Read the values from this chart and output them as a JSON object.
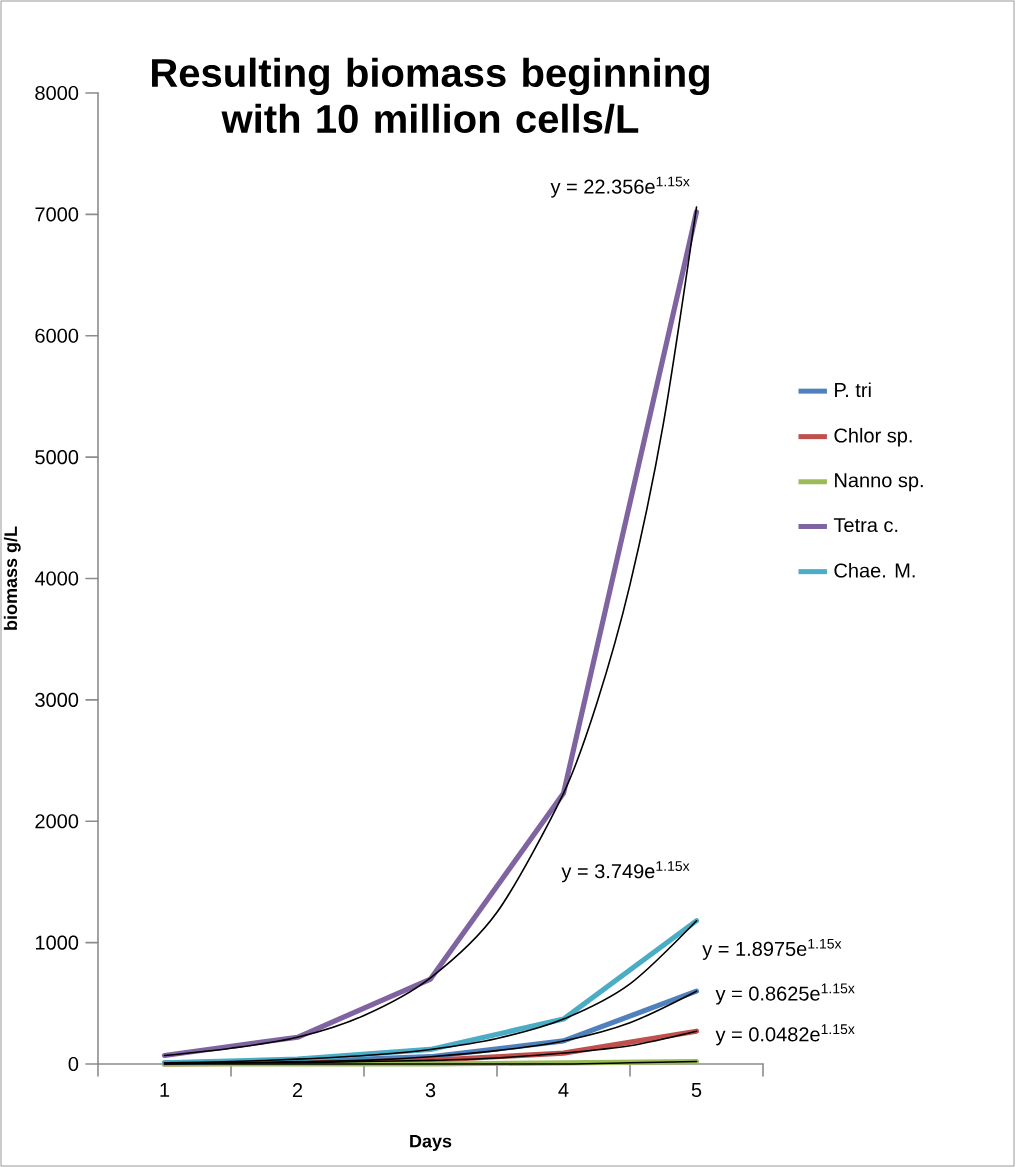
{
  "chart_data": {
    "type": "line",
    "title": "Resulting biomass beginning with 10 million cells/L",
    "xlabel": "Days",
    "ylabel": "biomass g/L",
    "x": [
      1,
      2,
      3,
      4,
      5
    ],
    "xlim": [
      0.5,
      5.5
    ],
    "xticks": [
      {
        "value": 0.5,
        "label": null
      },
      1,
      {
        "value": 1.5,
        "label": null
      },
      2,
      {
        "value": 2.5,
        "label": null
      },
      3,
      {
        "value": 3.5,
        "label": null
      },
      4,
      {
        "value": 4.5,
        "label": null
      },
      5,
      {
        "value": 5.5,
        "label": null
      }
    ],
    "ylim": [
      0,
      8000
    ],
    "yticks": [
      0,
      1000,
      2000,
      3000,
      4000,
      5000,
      6000,
      7000,
      8000
    ],
    "series": [
      {
        "name": "P. tri",
        "color": "#4f81bd",
        "values": [
          10,
          20,
          60,
          190,
          600
        ]
      },
      {
        "name": "Chlor sp.",
        "color": "#c0504d",
        "values": [
          0,
          10,
          30,
          90,
          270
        ]
      },
      {
        "name": "Nanno sp.",
        "color": "#9bbb59",
        "values": [
          0,
          0,
          0,
          10,
          20
        ]
      },
      {
        "name": "Tetra c.",
        "color": "#8064a2",
        "values": [
          70,
          220,
          700,
          2230,
          7020
        ]
      },
      {
        "name": "Chae. M.",
        "color": "#4bacc6",
        "values": [
          10,
          40,
          120,
          370,
          1180
        ]
      },
      {
        "type": "line",
        "color": "#000000",
        "x": [
          1,
          1.5,
          2,
          2.5,
          3,
          3.5,
          4,
          4.25,
          4.5,
          4.75,
          5
        ],
        "values": [
          70,
          130,
          220,
          400,
          710,
          1250,
          2230,
          2970,
          3950,
          5270,
          7060
        ]
      },
      {
        "type": "line",
        "color": "#000000",
        "x": [
          1,
          1.5,
          2,
          2.5,
          3,
          3.5,
          4,
          4.5,
          5
        ],
        "values": [
          10,
          20,
          40,
          70,
          120,
          210,
          370,
          660,
          1180
        ]
      },
      {
        "type": "line",
        "color": "#000000",
        "x": [
          1,
          1.5,
          2,
          2.5,
          3,
          3.5,
          4,
          4.5,
          5
        ],
        "values": [
          10,
          10,
          20,
          30,
          60,
          110,
          190,
          340,
          600
        ]
      },
      {
        "type": "line",
        "color": "#000000",
        "x": [
          1,
          1.5,
          2,
          2.5,
          3,
          3.5,
          4,
          4.5,
          5
        ],
        "values": [
          0,
          10,
          10,
          20,
          30,
          50,
          90,
          150,
          270
        ]
      },
      {
        "type": "line",
        "color": "#000000",
        "x": [
          1,
          2,
          3,
          4,
          4.5,
          5
        ],
        "values": [
          0,
          0,
          0,
          0,
          10,
          20
        ]
      }
    ],
    "annotations": [
      "y = 22.356e$^{1.15x}$",
      "y = 3.749e$^{1.15x}$",
      "y = 1.8975e$^{1.15x}$",
      "y = 0.8625e$^{1.15x}$",
      "y = 0.0482e$^{1.15x}$"
    ],
    "marker": "none",
    "legend": "right",
    "grid": false
  }
}
